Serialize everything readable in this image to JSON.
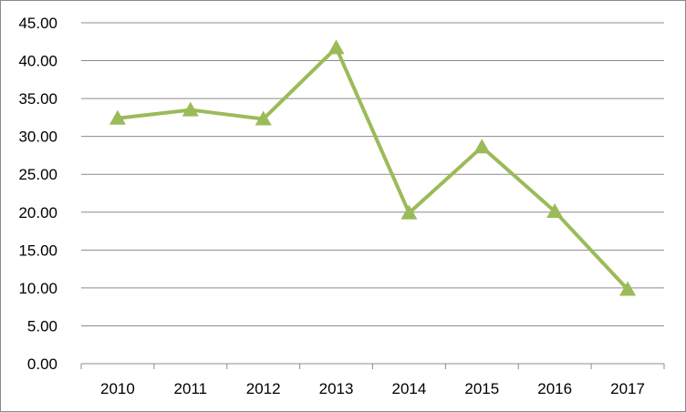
{
  "chart_data": {
    "type": "line",
    "title": "",
    "xlabel": "",
    "ylabel": "",
    "categories": [
      "2010",
      "2011",
      "2012",
      "2013",
      "2014",
      "2015",
      "2016",
      "2017"
    ],
    "series": [
      {
        "values": [
          32.4,
          33.5,
          32.3,
          41.7,
          19.9,
          28.6,
          20.1,
          9.8
        ],
        "color": "#9bbb59",
        "marker": "triangle"
      }
    ],
    "ylim": [
      0,
      45
    ],
    "yticks": [
      "0.00",
      "5.00",
      "10.00",
      "15.00",
      "20.00",
      "25.00",
      "30.00",
      "35.00",
      "40.00",
      "45.00"
    ],
    "ytick_step": 5,
    "grid": "horizontal",
    "legend": "none"
  }
}
